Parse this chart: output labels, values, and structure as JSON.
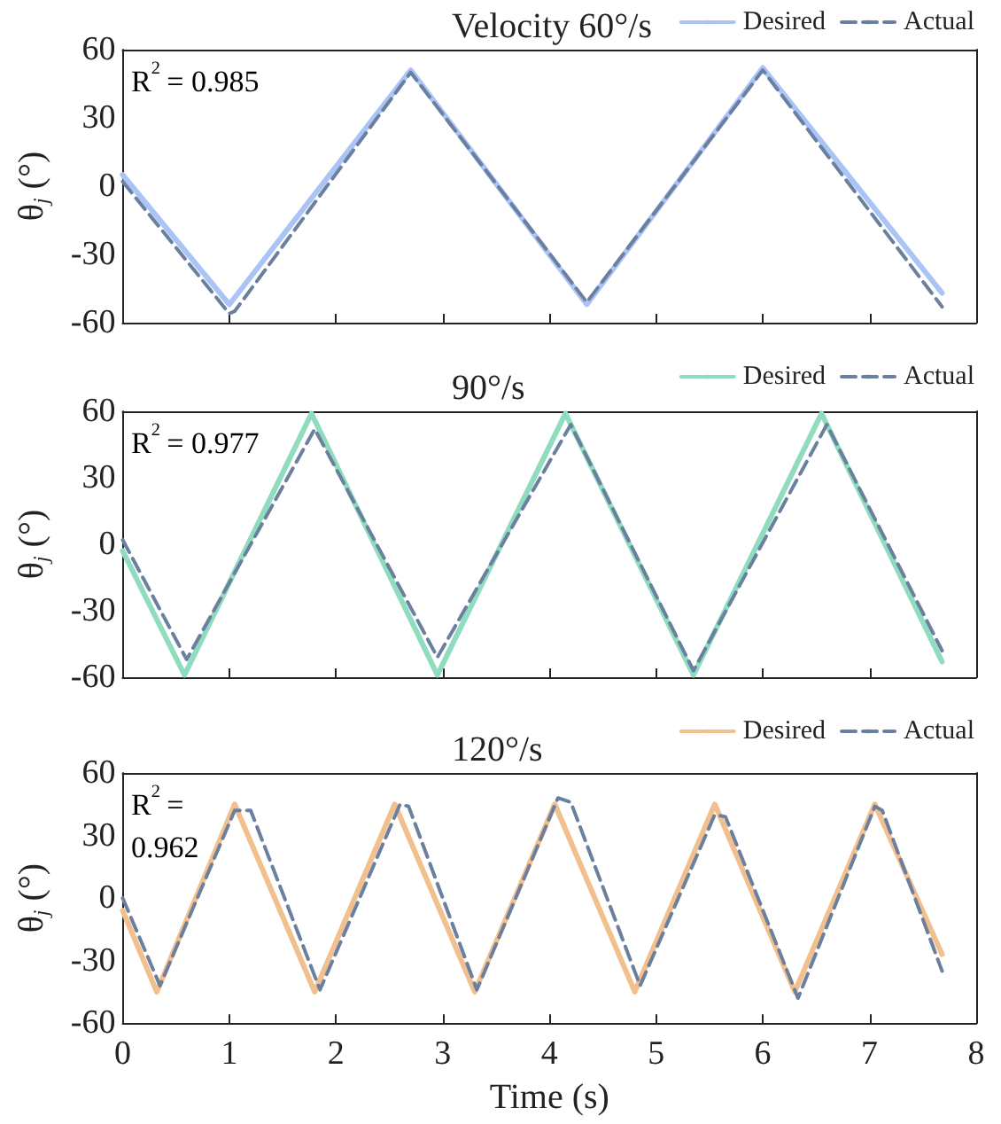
{
  "chart_data": [
    {
      "type": "line",
      "title": "Velocity 60°/s",
      "ylabel": "θ$_{j}$ (°)",
      "annotations": [
        "R$^{2}$ = 0.985"
      ],
      "xlim": [
        0,
        8
      ],
      "xticks": [
        0,
        1,
        2,
        3,
        4,
        5,
        6,
        7,
        8
      ],
      "ylim": [
        -60,
        60
      ],
      "yticks": [
        -60,
        -30,
        0,
        30,
        60
      ],
      "tick_labels": "y",
      "grid": false,
      "legend": "top right",
      "marker": "none",
      "series": [
        {
          "name": "Desired",
          "color": "#a9c4f5",
          "line_style": "solid",
          "x": [
            0,
            1.0,
            2.7,
            4.35,
            6.0,
            7.68
          ],
          "values": [
            5,
            -52,
            51,
            -52,
            52,
            -47
          ]
        },
        {
          "name": "Actual",
          "color": "#6b7f9e",
          "line_style": "dashed",
          "x": [
            0,
            1.0,
            1.05,
            2.7,
            4.35,
            6.0,
            7.68
          ],
          "values": [
            2,
            -56,
            -55,
            50,
            -51,
            51,
            -53
          ]
        }
      ]
    },
    {
      "type": "line",
      "title": "90°/s",
      "ylabel": "θ$_{j}$ (°)",
      "annotations": [
        "R$^{2}$ = 0.977"
      ],
      "xlim": [
        0,
        8
      ],
      "xticks": [
        0,
        1,
        2,
        3,
        4,
        5,
        6,
        7,
        8
      ],
      "ylim": [
        -60,
        60
      ],
      "yticks": [
        -60,
        -30,
        0,
        30,
        60
      ],
      "tick_labels": "y",
      "grid": false,
      "legend": "top right",
      "marker": "none",
      "series": [
        {
          "name": "Desired",
          "color": "#8fdcbf",
          "line_style": "solid",
          "x": [
            0,
            0.58,
            1.77,
            2.95,
            4.15,
            5.35,
            6.55,
            7.68
          ],
          "values": [
            -3,
            -59,
            59,
            -59,
            59,
            -59,
            59,
            -53
          ]
        },
        {
          "name": "Actual",
          "color": "#6b7f9e",
          "line_style": "dashed",
          "x": [
            0,
            0.6,
            1.8,
            2.95,
            4.2,
            5.35,
            6.6,
            7.68
          ],
          "values": [
            2,
            -52,
            52,
            -51,
            54,
            -57,
            54,
            -48
          ]
        }
      ]
    },
    {
      "type": "line",
      "title": "120°/s",
      "xlabel": "Time (s)",
      "ylabel": "θ$_{j}$ (°)",
      "annotations": [
        "R$^{2}$ = 0.962"
      ],
      "xlim": [
        0,
        8
      ],
      "xticks": [
        0,
        1,
        2,
        3,
        4,
        5,
        6,
        7,
        8
      ],
      "ylim": [
        -60,
        60
      ],
      "yticks": [
        -60,
        -30,
        0,
        30,
        60
      ],
      "grid": false,
      "legend": "top right",
      "marker": "none",
      "series": [
        {
          "name": "Desired",
          "color": "#f2c08f",
          "line_style": "solid",
          "x": [
            0,
            0.32,
            1.05,
            1.8,
            2.55,
            3.3,
            4.05,
            4.8,
            5.55,
            6.3,
            7.05,
            7.68
          ],
          "values": [
            -6,
            -45,
            45,
            -45,
            45,
            -45,
            45,
            -45,
            45,
            -45,
            45,
            -27
          ]
        },
        {
          "name": "Actual",
          "color": "#6b7f9e",
          "line_style": "dashed",
          "x": [
            0,
            0.35,
            1.05,
            1.2,
            1.85,
            2.6,
            2.68,
            3.32,
            4.08,
            4.2,
            4.85,
            5.55,
            5.65,
            6.33,
            7.05,
            7.12,
            7.68
          ],
          "values": [
            0,
            -42,
            42,
            42,
            -44,
            45,
            44,
            -44,
            48,
            46,
            -42,
            40,
            39,
            -48,
            44,
            42,
            -35
          ]
        }
      ]
    }
  ]
}
